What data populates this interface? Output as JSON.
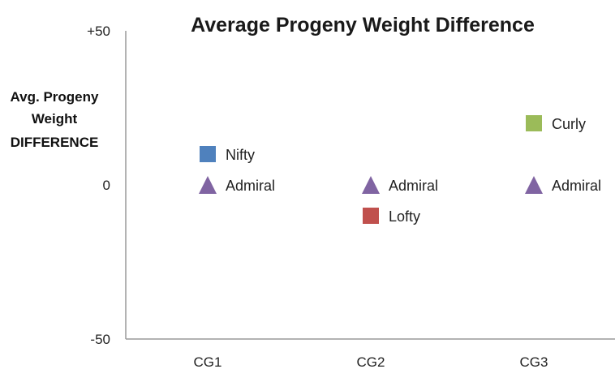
{
  "chart_data": {
    "type": "scatter",
    "title": "Average Progeny Weight Difference",
    "ylabel_lines": [
      "Avg. Progeny",
      "Weight",
      "DIFFERENCE"
    ],
    "xlabel": "",
    "categories": [
      "CG1",
      "CG2",
      "CG3"
    ],
    "ylim": [
      -50,
      50
    ],
    "yticks": [
      {
        "value": 50,
        "label": "+50"
      },
      {
        "value": 0,
        "label": "0"
      },
      {
        "value": -50,
        "label": "-50"
      }
    ],
    "grid": false,
    "legend": "none",
    "points": [
      {
        "category": "CG1",
        "y": 10,
        "label": "Nifty",
        "marker": "square",
        "color": "#4f81bd"
      },
      {
        "category": "CG1",
        "y": 0,
        "label": "Admiral",
        "marker": "triangle",
        "color": "#8064a2"
      },
      {
        "category": "CG2",
        "y": 0,
        "label": "Admiral",
        "marker": "triangle",
        "color": "#8064a2"
      },
      {
        "category": "CG2",
        "y": -10,
        "label": "Lofty",
        "marker": "square",
        "color": "#c0504d"
      },
      {
        "category": "CG3",
        "y": 20,
        "label": "Curly",
        "marker": "square",
        "color": "#9bbb59"
      },
      {
        "category": "CG3",
        "y": 0,
        "label": "Admiral",
        "marker": "triangle",
        "color": "#8064a2"
      }
    ]
  }
}
